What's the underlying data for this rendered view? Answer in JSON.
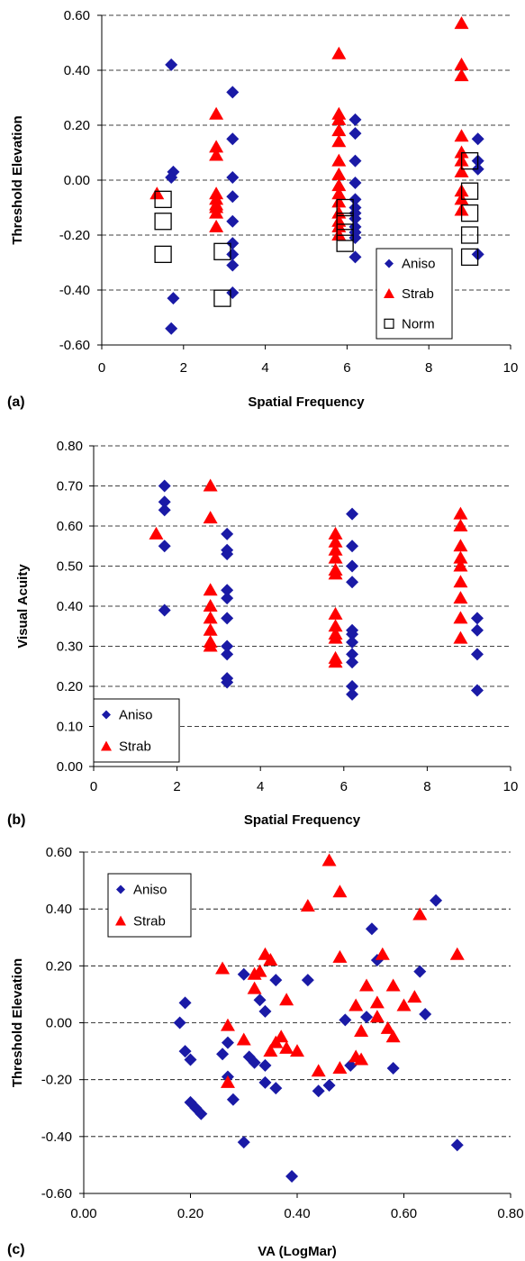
{
  "colors": {
    "aniso": "#1a1aa6",
    "strab": "#ff0000",
    "norm_stroke": "#000000",
    "grid": "#000000"
  },
  "chart_data": [
    {
      "type": "scatter",
      "panel_label": "(a)",
      "xlabel": "Spatial Frequency",
      "ylabel": "Threshold Elevation",
      "xlim": [
        0,
        10
      ],
      "ylim": [
        -0.6,
        0.6
      ],
      "x_ticks": [
        0,
        2,
        4,
        6,
        8,
        10
      ],
      "x_tick_labels": [
        "0",
        "2",
        "4",
        "6",
        "8",
        "10"
      ],
      "y_ticks": [
        -0.6,
        -0.4,
        -0.2,
        0,
        0.2,
        0.4,
        0.6
      ],
      "y_tick_labels": [
        "-0.60",
        "-0.40",
        "-0.20",
        "0.00",
        "0.20",
        "0.40",
        "0.60"
      ],
      "grid": "horizontal dashed",
      "legend_position": "bottom-right",
      "series": [
        {
          "name": "Aniso",
          "marker": "diamond",
          "points": [
            [
              1.7,
              0.42
            ],
            [
              1.75,
              0.03
            ],
            [
              1.7,
              0.01
            ],
            [
              1.75,
              -0.43
            ],
            [
              1.7,
              -0.54
            ],
            [
              3.2,
              0.32
            ],
            [
              3.2,
              0.15
            ],
            [
              3.2,
              0.01
            ],
            [
              3.2,
              -0.06
            ],
            [
              3.2,
              -0.15
            ],
            [
              3.2,
              -0.23
            ],
            [
              3.2,
              -0.27
            ],
            [
              3.2,
              -0.31
            ],
            [
              3.2,
              -0.41
            ],
            [
              6.2,
              0.22
            ],
            [
              6.2,
              0.17
            ],
            [
              6.2,
              0.07
            ],
            [
              6.2,
              -0.01
            ],
            [
              6.2,
              -0.07
            ],
            [
              6.2,
              -0.1
            ],
            [
              6.2,
              -0.12
            ],
            [
              6.2,
              -0.14
            ],
            [
              6.2,
              -0.17
            ],
            [
              6.2,
              -0.19
            ],
            [
              6.2,
              -0.21
            ],
            [
              6.2,
              -0.28
            ],
            [
              9.2,
              0.15
            ],
            [
              9.2,
              0.07
            ],
            [
              9.2,
              0.04
            ],
            [
              9.2,
              -0.27
            ]
          ]
        },
        {
          "name": "Strab",
          "marker": "triangle",
          "points": [
            [
              1.35,
              -0.05
            ],
            [
              2.8,
              0.24
            ],
            [
              2.8,
              0.12
            ],
            [
              2.8,
              0.09
            ],
            [
              2.8,
              -0.05
            ],
            [
              2.8,
              -0.07
            ],
            [
              2.8,
              -0.09
            ],
            [
              2.8,
              -0.1
            ],
            [
              2.8,
              -0.12
            ],
            [
              2.8,
              -0.17
            ],
            [
              5.8,
              0.46
            ],
            [
              5.8,
              0.24
            ],
            [
              5.8,
              0.22
            ],
            [
              5.8,
              0.18
            ],
            [
              5.8,
              0.14
            ],
            [
              5.8,
              0.07
            ],
            [
              5.8,
              0.02
            ],
            [
              5.8,
              -0.02
            ],
            [
              5.8,
              -0.05
            ],
            [
              5.8,
              -0.08
            ],
            [
              5.8,
              -0.12
            ],
            [
              5.8,
              -0.15
            ],
            [
              5.8,
              -0.17
            ],
            [
              5.8,
              -0.2
            ],
            [
              8.8,
              0.57
            ],
            [
              8.8,
              0.42
            ],
            [
              8.8,
              0.38
            ],
            [
              8.8,
              0.16
            ],
            [
              8.8,
              0.1
            ],
            [
              8.8,
              0.07
            ],
            [
              8.8,
              0.03
            ],
            [
              8.8,
              -0.04
            ],
            [
              8.8,
              -0.07
            ],
            [
              8.8,
              -0.11
            ]
          ]
        },
        {
          "name": "Norm",
          "marker": "square",
          "points": [
            [
              1.5,
              -0.07
            ],
            [
              1.5,
              -0.15
            ],
            [
              1.5,
              -0.27
            ],
            [
              2.95,
              -0.26
            ],
            [
              2.95,
              -0.43
            ],
            [
              5.95,
              -0.1
            ],
            [
              5.95,
              -0.15
            ],
            [
              5.95,
              -0.19
            ],
            [
              5.95,
              -0.23
            ],
            [
              9.0,
              0.07
            ],
            [
              9.0,
              -0.04
            ],
            [
              9.0,
              -0.12
            ],
            [
              9.0,
              -0.2
            ],
            [
              9.0,
              -0.28
            ]
          ]
        }
      ]
    },
    {
      "type": "scatter",
      "panel_label": "(b)",
      "xlabel": "Spatial Frequency",
      "ylabel": "Visual Acuity",
      "xlim": [
        0,
        10
      ],
      "ylim": [
        0,
        0.8
      ],
      "x_ticks": [
        0,
        2,
        4,
        6,
        8,
        10
      ],
      "x_tick_labels": [
        "0",
        "2",
        "4",
        "6",
        "8",
        "10"
      ],
      "y_ticks": [
        0,
        0.1,
        0.2,
        0.3,
        0.4,
        0.5,
        0.6,
        0.7,
        0.8
      ],
      "y_tick_labels": [
        "0.00",
        "0.10",
        "0.20",
        "0.30",
        "0.40",
        "0.50",
        "0.60",
        "0.70",
        "0.80"
      ],
      "grid": "horizontal dashed",
      "legend_position": "bottom-left",
      "series": [
        {
          "name": "Aniso",
          "marker": "diamond",
          "points": [
            [
              1.7,
              0.7
            ],
            [
              1.7,
              0.66
            ],
            [
              1.7,
              0.64
            ],
            [
              1.7,
              0.55
            ],
            [
              1.7,
              0.39
            ],
            [
              3.2,
              0.58
            ],
            [
              3.2,
              0.54
            ],
            [
              3.2,
              0.53
            ],
            [
              3.2,
              0.44
            ],
            [
              3.2,
              0.42
            ],
            [
              3.2,
              0.37
            ],
            [
              3.2,
              0.3
            ],
            [
              3.2,
              0.28
            ],
            [
              3.2,
              0.22
            ],
            [
              3.2,
              0.21
            ],
            [
              6.2,
              0.63
            ],
            [
              6.2,
              0.55
            ],
            [
              6.2,
              0.5
            ],
            [
              6.2,
              0.46
            ],
            [
              6.2,
              0.34
            ],
            [
              6.2,
              0.33
            ],
            [
              6.2,
              0.31
            ],
            [
              6.2,
              0.28
            ],
            [
              6.2,
              0.26
            ],
            [
              6.2,
              0.2
            ],
            [
              6.2,
              0.18
            ],
            [
              9.2,
              0.37
            ],
            [
              9.2,
              0.34
            ],
            [
              9.2,
              0.28
            ],
            [
              9.2,
              0.19
            ]
          ]
        },
        {
          "name": "Strab",
          "marker": "triangle",
          "points": [
            [
              1.5,
              0.58
            ],
            [
              2.8,
              0.7
            ],
            [
              2.8,
              0.62
            ],
            [
              2.8,
              0.44
            ],
            [
              2.8,
              0.4
            ],
            [
              2.8,
              0.37
            ],
            [
              2.8,
              0.34
            ],
            [
              2.8,
              0.31
            ],
            [
              2.8,
              0.3
            ],
            [
              5.8,
              0.58
            ],
            [
              5.8,
              0.56
            ],
            [
              5.8,
              0.54
            ],
            [
              5.8,
              0.52
            ],
            [
              5.8,
              0.49
            ],
            [
              5.8,
              0.48
            ],
            [
              5.8,
              0.38
            ],
            [
              5.8,
              0.35
            ],
            [
              5.8,
              0.33
            ],
            [
              5.8,
              0.32
            ],
            [
              5.8,
              0.27
            ],
            [
              5.8,
              0.26
            ],
            [
              8.8,
              0.63
            ],
            [
              8.8,
              0.6
            ],
            [
              8.8,
              0.55
            ],
            [
              8.8,
              0.52
            ],
            [
              8.8,
              0.5
            ],
            [
              8.8,
              0.46
            ],
            [
              8.8,
              0.42
            ],
            [
              8.8,
              0.37
            ],
            [
              8.8,
              0.32
            ]
          ]
        }
      ]
    },
    {
      "type": "scatter",
      "panel_label": "(c)",
      "xlabel": "VA (LogMar)",
      "ylabel": "Threshold Elevation",
      "xlim": [
        0,
        0.8
      ],
      "ylim": [
        -0.6,
        0.6
      ],
      "x_ticks": [
        0,
        0.2,
        0.4,
        0.6,
        0.8
      ],
      "x_tick_labels": [
        "0.00",
        "0.20",
        "0.40",
        "0.60",
        "0.80"
      ],
      "y_ticks": [
        -0.6,
        -0.4,
        -0.2,
        0,
        0.2,
        0.4,
        0.6
      ],
      "y_tick_labels": [
        "-0.60",
        "-0.40",
        "-0.20",
        "0.00",
        "0.20",
        "0.40",
        "0.60"
      ],
      "grid": "horizontal dashed",
      "legend_position": "top-left",
      "series": [
        {
          "name": "Aniso",
          "marker": "diamond",
          "points": [
            [
              0.19,
              0.07
            ],
            [
              0.18,
              0.0
            ],
            [
              0.19,
              -0.1
            ],
            [
              0.2,
              -0.13
            ],
            [
              0.2,
              -0.28
            ],
            [
              0.21,
              -0.3
            ],
            [
              0.22,
              -0.32
            ],
            [
              0.26,
              -0.11
            ],
            [
              0.27,
              -0.19
            ],
            [
              0.27,
              -0.07
            ],
            [
              0.28,
              -0.27
            ],
            [
              0.3,
              -0.42
            ],
            [
              0.3,
              0.17
            ],
            [
              0.31,
              -0.12
            ],
            [
              0.32,
              -0.14
            ],
            [
              0.33,
              0.08
            ],
            [
              0.34,
              0.04
            ],
            [
              0.34,
              -0.15
            ],
            [
              0.34,
              -0.21
            ],
            [
              0.36,
              -0.23
            ],
            [
              0.36,
              0.15
            ],
            [
              0.39,
              -0.54
            ],
            [
              0.42,
              0.15
            ],
            [
              0.44,
              -0.24
            ],
            [
              0.46,
              -0.22
            ],
            [
              0.49,
              0.01
            ],
            [
              0.5,
              -0.15
            ],
            [
              0.53,
              0.02
            ],
            [
              0.54,
              0.33
            ],
            [
              0.55,
              0.22
            ],
            [
              0.58,
              -0.16
            ],
            [
              0.63,
              0.18
            ],
            [
              0.64,
              0.03
            ],
            [
              0.66,
              0.43
            ],
            [
              0.7,
              -0.43
            ]
          ]
        },
        {
          "name": "Strab",
          "marker": "triangle",
          "points": [
            [
              0.26,
              0.19
            ],
            [
              0.27,
              -0.01
            ],
            [
              0.27,
              -0.21
            ],
            [
              0.3,
              -0.06
            ],
            [
              0.32,
              0.12
            ],
            [
              0.32,
              0.17
            ],
            [
              0.33,
              0.18
            ],
            [
              0.34,
              0.24
            ],
            [
              0.35,
              -0.1
            ],
            [
              0.35,
              0.22
            ],
            [
              0.36,
              -0.07
            ],
            [
              0.37,
              -0.05
            ],
            [
              0.38,
              -0.09
            ],
            [
              0.38,
              0.08
            ],
            [
              0.4,
              -0.1
            ],
            [
              0.42,
              0.41
            ],
            [
              0.44,
              -0.17
            ],
            [
              0.46,
              0.57
            ],
            [
              0.48,
              0.46
            ],
            [
              0.48,
              0.23
            ],
            [
              0.48,
              -0.16
            ],
            [
              0.51,
              -0.12
            ],
            [
              0.51,
              0.06
            ],
            [
              0.52,
              -0.13
            ],
            [
              0.52,
              -0.03
            ],
            [
              0.53,
              0.13
            ],
            [
              0.55,
              0.07
            ],
            [
              0.55,
              0.02
            ],
            [
              0.56,
              0.24
            ],
            [
              0.57,
              -0.02
            ],
            [
              0.58,
              0.13
            ],
            [
              0.58,
              -0.05
            ],
            [
              0.6,
              0.06
            ],
            [
              0.62,
              0.09
            ],
            [
              0.63,
              0.38
            ],
            [
              0.7,
              0.24
            ]
          ]
        }
      ]
    }
  ]
}
